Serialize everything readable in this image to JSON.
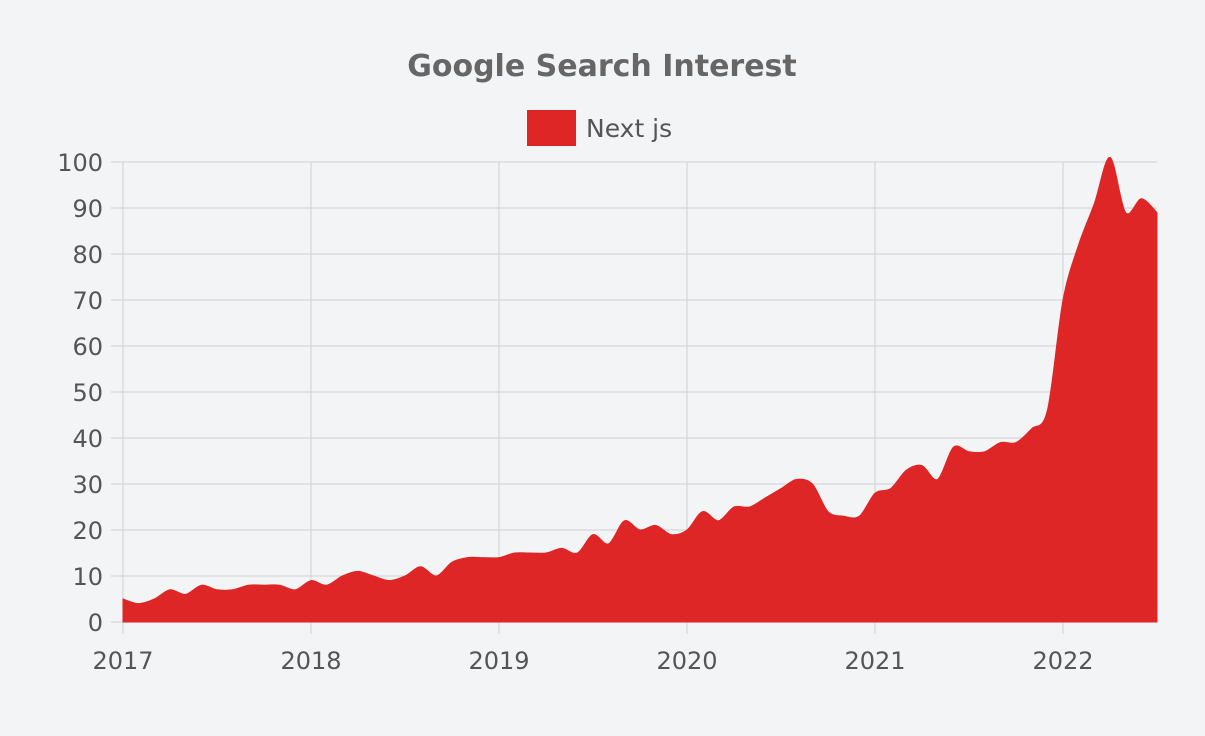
{
  "chart_data": {
    "type": "area",
    "title": "Google Search Interest",
    "xlabel": "",
    "ylabel": "",
    "legend_position": "top-center",
    "grid": true,
    "colors": {
      "background": "#f3f4f6",
      "series": "#de2626",
      "grid": "#d5d6d9",
      "text": "#555555",
      "title": "#666666"
    },
    "xlim": [
      2017.0,
      2022.5
    ],
    "ylim": [
      0,
      100
    ],
    "x_ticks": [
      2017,
      2018,
      2019,
      2020,
      2021,
      2022
    ],
    "x_tick_labels": [
      "2017",
      "2018",
      "2019",
      "2020",
      "2021",
      "2022"
    ],
    "y_ticks": [
      0,
      10,
      20,
      30,
      40,
      50,
      60,
      70,
      80,
      90,
      100
    ],
    "y_tick_labels": [
      "0",
      "10",
      "20",
      "30",
      "40",
      "50",
      "60",
      "70",
      "80",
      "90",
      "100"
    ],
    "series": [
      {
        "name": "Next js",
        "color": "#de2626",
        "x": [
          2017.0,
          2017.083,
          2017.167,
          2017.25,
          2017.333,
          2017.417,
          2017.5,
          2017.583,
          2017.667,
          2017.75,
          2017.833,
          2017.917,
          2018.0,
          2018.083,
          2018.167,
          2018.25,
          2018.333,
          2018.417,
          2018.5,
          2018.583,
          2018.667,
          2018.75,
          2018.833,
          2018.917,
          2019.0,
          2019.083,
          2019.167,
          2019.25,
          2019.333,
          2019.417,
          2019.5,
          2019.583,
          2019.667,
          2019.75,
          2019.833,
          2019.917,
          2020.0,
          2020.083,
          2020.167,
          2020.25,
          2020.333,
          2020.417,
          2020.5,
          2020.583,
          2020.667,
          2020.75,
          2020.833,
          2020.917,
          2021.0,
          2021.083,
          2021.167,
          2021.25,
          2021.333,
          2021.417,
          2021.5,
          2021.583,
          2021.667,
          2021.75,
          2021.833,
          2021.917,
          2022.0,
          2022.083,
          2022.167,
          2022.25,
          2022.333,
          2022.417,
          2022.5
        ],
        "values": [
          5,
          4,
          5,
          7,
          6,
          8,
          7,
          7,
          8,
          8,
          8,
          7,
          9,
          8,
          10,
          11,
          10,
          9,
          10,
          12,
          10,
          13,
          14,
          14,
          14,
          15,
          15,
          15,
          16,
          15,
          19,
          17,
          22,
          20,
          21,
          19,
          20,
          24,
          22,
          25,
          25,
          27,
          29,
          31,
          30,
          24,
          23,
          23,
          28,
          29,
          33,
          34,
          31,
          38,
          37,
          37,
          39,
          39,
          42,
          46,
          70,
          82,
          91,
          101,
          89,
          92,
          89
        ]
      }
    ]
  }
}
